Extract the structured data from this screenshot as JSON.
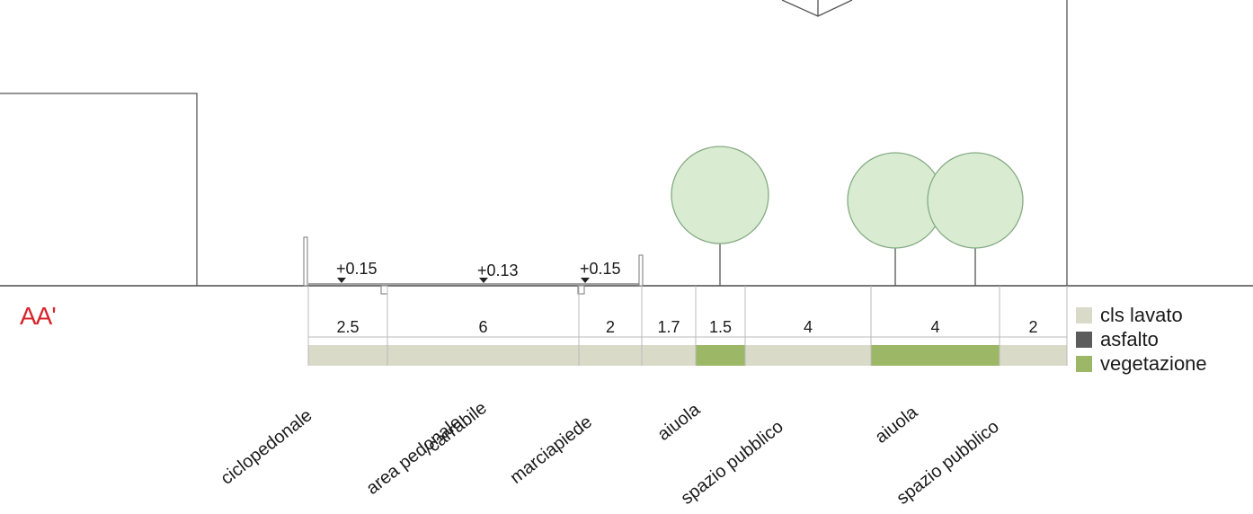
{
  "section_label": "AA'",
  "colors": {
    "cls_lavato": "#d9dac8",
    "asfalto": "#5c5c5c",
    "vegetazione": "#9cb866",
    "tree_fill": "#d9ecd2",
    "tree_stroke": "#86aa84",
    "line": "#555555"
  },
  "levels": [
    {
      "label": "+0.15"
    },
    {
      "label": "+0.13"
    },
    {
      "label": "+0.15"
    }
  ],
  "strips": [
    {
      "width": "2.5",
      "material": "cls_lavato"
    },
    {
      "width": "6",
      "material": "cls_lavato"
    },
    {
      "width": "2",
      "material": "cls_lavato"
    },
    {
      "width": "1.7",
      "material": "cls_lavato"
    },
    {
      "width": "1.5",
      "material": "vegetazione"
    },
    {
      "width": "4",
      "material": "cls_lavato"
    },
    {
      "width": "4",
      "material": "vegetazione"
    },
    {
      "width": "2",
      "material": "cls_lavato"
    }
  ],
  "zones": [
    {
      "label": "ciclopedonale"
    },
    {
      "label": "area pedonale"
    },
    {
      "label": "/carrabile"
    },
    {
      "label": "marciapiede"
    },
    {
      "label": "aiuola"
    },
    {
      "label": "spazio pubblico"
    },
    {
      "label": "aiuola"
    },
    {
      "label": "spazio pubblico"
    }
  ],
  "legend": [
    {
      "label": "cls lavato",
      "material": "cls_lavato"
    },
    {
      "label": "asfalto",
      "material": "asfalto"
    },
    {
      "label": "vegetazione",
      "material": "vegetazione"
    }
  ]
}
